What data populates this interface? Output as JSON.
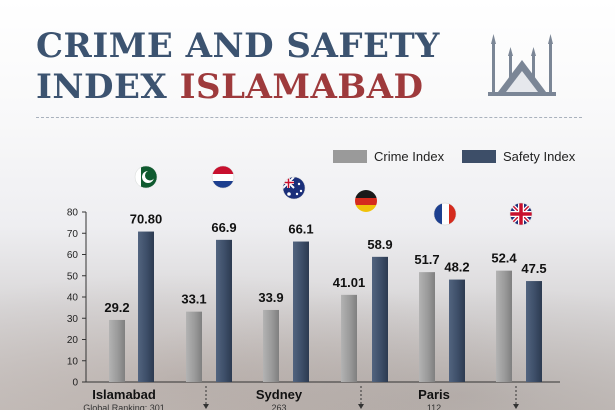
{
  "header": {
    "title_line1": "CRIME AND SAFETY",
    "title_line2_prefix": "INDEX ",
    "title_line2_accent": "ISLAMABAD"
  },
  "icons": [
    "mosque-icon",
    "flag-pakistan-icon",
    "flag-netherlands-icon",
    "flag-australia-icon",
    "flag-germany-icon",
    "flag-france-icon",
    "flag-uk-icon"
  ],
  "colors": {
    "title": "#3c5370",
    "accent": "#9e3a3c",
    "crime": "#9a9a9a",
    "safety": "#3d4e68"
  },
  "chart_data": {
    "type": "bar",
    "title": "",
    "xlabel": "",
    "ylabel": "",
    "ylim": [
      0,
      80
    ],
    "y_ticks": [
      0,
      10,
      20,
      30,
      40,
      50,
      60,
      70,
      80
    ],
    "categories": [
      "Islamabad",
      "",
      "Sydney",
      "",
      "Paris",
      ""
    ],
    "category_sublabels": [
      "Global Ranking: 301",
      "",
      "263",
      "",
      "112",
      ""
    ],
    "value_labels": {
      "crime": [
        "29.2",
        "33.1",
        "33.9",
        "41.01",
        "51.7",
        "52.4"
      ],
      "safety": [
        "70.80",
        "66.9",
        "66.1",
        "58.9",
        "48.2",
        "47.5"
      ]
    },
    "series": [
      {
        "name": "Crime Index",
        "values": [
          29.2,
          33.1,
          33.9,
          41.01,
          51.7,
          52.4
        ]
      },
      {
        "name": "Safety Index",
        "values": [
          70.8,
          66.9,
          66.1,
          58.9,
          48.2,
          47.5
        ]
      }
    ],
    "legend_position": "top-right",
    "grid": false
  }
}
